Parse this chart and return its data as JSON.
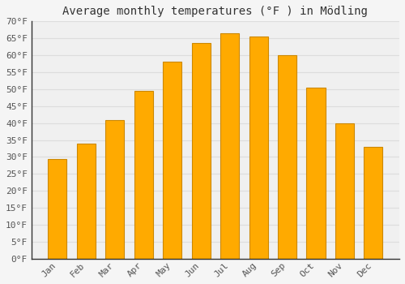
{
  "title": "Average monthly temperatures (°F ) in Mödling",
  "months": [
    "Jan",
    "Feb",
    "Mar",
    "Apr",
    "May",
    "Jun",
    "Jul",
    "Aug",
    "Sep",
    "Oct",
    "Nov",
    "Dec"
  ],
  "values": [
    29.5,
    34.0,
    41.0,
    49.5,
    58.0,
    63.5,
    66.5,
    65.5,
    60.0,
    50.5,
    40.0,
    33.0
  ],
  "bar_color": "#FFAA00",
  "bar_edge_color": "#CC8800",
  "background_color": "#F5F5F5",
  "plot_bg_color": "#F0F0F0",
  "grid_color": "#DDDDDD",
  "ylim": [
    0,
    70
  ],
  "yticks": [
    0,
    5,
    10,
    15,
    20,
    25,
    30,
    35,
    40,
    45,
    50,
    55,
    60,
    65,
    70
  ],
  "title_fontsize": 10,
  "tick_fontsize": 8,
  "title_color": "#333333",
  "tick_color": "#555555",
  "spine_color": "#333333"
}
